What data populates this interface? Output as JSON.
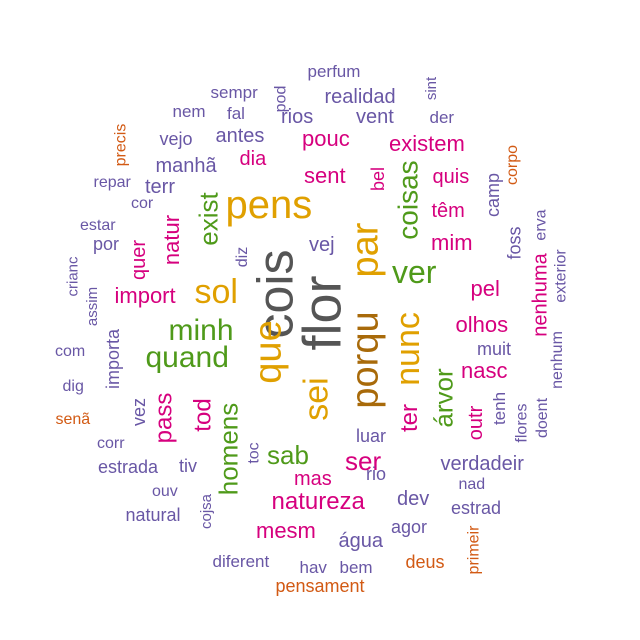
{
  "colors": {
    "purple": "#6957a5",
    "magenta": "#d6007e",
    "green": "#4f9a1a",
    "gold": "#e0a000",
    "brown": "#a86a0a",
    "orange": "#d25a14",
    "gray": "#555555"
  },
  "words": [
    {
      "text": "flor",
      "color": "gray"
    },
    {
      "text": "cois",
      "color": "gray"
    },
    {
      "text": "porqu",
      "color": "brown"
    },
    {
      "text": "par",
      "color": "gold"
    },
    {
      "text": "pens",
      "color": "gold"
    },
    {
      "text": "que",
      "color": "gold"
    },
    {
      "text": "sei",
      "color": "gold"
    },
    {
      "text": "nunc",
      "color": "gold"
    },
    {
      "text": "sol",
      "color": "gold"
    },
    {
      "text": "ver",
      "color": "green"
    },
    {
      "text": "minh",
      "color": "green"
    },
    {
      "text": "quand",
      "color": "green"
    },
    {
      "text": "coisas",
      "color": "green"
    },
    {
      "text": "árvor",
      "color": "green"
    },
    {
      "text": "exist",
      "color": "green"
    },
    {
      "text": "homens",
      "color": "green"
    },
    {
      "text": "sab",
      "color": "green"
    },
    {
      "text": "natureza",
      "color": "magenta"
    },
    {
      "text": "ser",
      "color": "magenta"
    },
    {
      "text": "ter",
      "color": "magenta"
    },
    {
      "text": "tod",
      "color": "magenta"
    },
    {
      "text": "pass",
      "color": "magenta"
    },
    {
      "text": "sent",
      "color": "magenta"
    },
    {
      "text": "pouc",
      "color": "magenta"
    },
    {
      "text": "existem",
      "color": "magenta"
    },
    {
      "text": "mim",
      "color": "magenta"
    },
    {
      "text": "pel",
      "color": "magenta"
    },
    {
      "text": "olhos",
      "color": "magenta"
    },
    {
      "text": "nasc",
      "color": "magenta"
    },
    {
      "text": "import",
      "color": "magenta"
    },
    {
      "text": "natur",
      "color": "magenta"
    },
    {
      "text": "quer",
      "color": "magenta"
    },
    {
      "text": "dia",
      "color": "magenta"
    },
    {
      "text": "quis",
      "color": "magenta"
    },
    {
      "text": "têm",
      "color": "magenta"
    },
    {
      "text": "mas",
      "color": "magenta"
    },
    {
      "text": "mesm",
      "color": "magenta"
    },
    {
      "text": "nenhuma",
      "color": "magenta"
    },
    {
      "text": "outr",
      "color": "magenta"
    },
    {
      "text": "bel",
      "color": "magenta"
    },
    {
      "text": "primeir",
      "color": "orange"
    },
    {
      "text": "deus",
      "color": "orange"
    },
    {
      "text": "pensament",
      "color": "orange"
    },
    {
      "text": "senã",
      "color": "orange"
    },
    {
      "text": "precis",
      "color": "orange"
    },
    {
      "text": "corpo",
      "color": "orange"
    },
    {
      "text": "perfum",
      "color": "purple"
    },
    {
      "text": "sempr",
      "color": "purple"
    },
    {
      "text": "pod",
      "color": "purple"
    },
    {
      "text": "sint",
      "color": "purple"
    },
    {
      "text": "realidad",
      "color": "purple"
    },
    {
      "text": "nem",
      "color": "purple"
    },
    {
      "text": "fal",
      "color": "purple"
    },
    {
      "text": "rios",
      "color": "purple"
    },
    {
      "text": "vent",
      "color": "purple"
    },
    {
      "text": "der",
      "color": "purple"
    },
    {
      "text": "vejo",
      "color": "purple"
    },
    {
      "text": "antes",
      "color": "purple"
    },
    {
      "text": "manhã",
      "color": "purple"
    },
    {
      "text": "repar",
      "color": "purple"
    },
    {
      "text": "terr",
      "color": "purple"
    },
    {
      "text": "cor",
      "color": "purple"
    },
    {
      "text": "camp",
      "color": "purple"
    },
    {
      "text": "estar",
      "color": "purple"
    },
    {
      "text": "por",
      "color": "purple"
    },
    {
      "text": "diz",
      "color": "purple"
    },
    {
      "text": "vej",
      "color": "purple"
    },
    {
      "text": "foss",
      "color": "purple"
    },
    {
      "text": "erva",
      "color": "purple"
    },
    {
      "text": "crianc",
      "color": "purple"
    },
    {
      "text": "assim",
      "color": "purple"
    },
    {
      "text": "exterior",
      "color": "purple"
    },
    {
      "text": "importa",
      "color": "purple"
    },
    {
      "text": "com",
      "color": "purple"
    },
    {
      "text": "muit",
      "color": "purple"
    },
    {
      "text": "nenhum",
      "color": "purple"
    },
    {
      "text": "dig",
      "color": "purple"
    },
    {
      "text": "tenh",
      "color": "purple"
    },
    {
      "text": "vez",
      "color": "purple"
    },
    {
      "text": "flores",
      "color": "purple"
    },
    {
      "text": "doent",
      "color": "purple"
    },
    {
      "text": "luar",
      "color": "purple"
    },
    {
      "text": "corr",
      "color": "purple"
    },
    {
      "text": "toc",
      "color": "purple"
    },
    {
      "text": "estrada",
      "color": "purple"
    },
    {
      "text": "tiv",
      "color": "purple"
    },
    {
      "text": "rio",
      "color": "purple"
    },
    {
      "text": "verdadeir",
      "color": "purple"
    },
    {
      "text": "nad",
      "color": "purple"
    },
    {
      "text": "ouv",
      "color": "purple"
    },
    {
      "text": "dev",
      "color": "purple"
    },
    {
      "text": "estrad",
      "color": "purple"
    },
    {
      "text": "natural",
      "color": "purple"
    },
    {
      "text": "cojsa",
      "color": "purple"
    },
    {
      "text": "agor",
      "color": "purple"
    },
    {
      "text": "água",
      "color": "purple"
    },
    {
      "text": "diferent",
      "color": "purple"
    },
    {
      "text": "hav",
      "color": "purple"
    },
    {
      "text": "bem",
      "color": "purple"
    }
  ]
}
